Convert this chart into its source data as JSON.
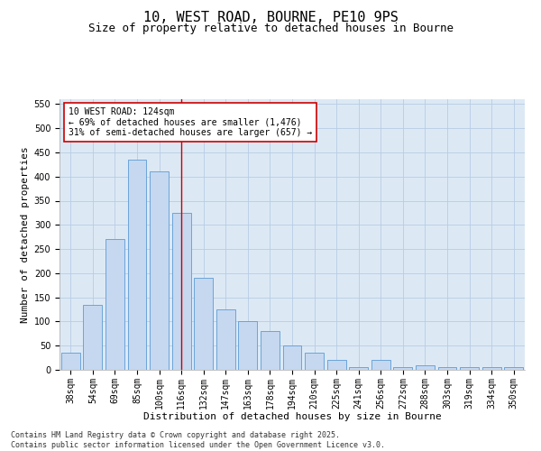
{
  "title1": "10, WEST ROAD, BOURNE, PE10 9PS",
  "title2": "Size of property relative to detached houses in Bourne",
  "xlabel": "Distribution of detached houses by size in Bourne",
  "ylabel": "Number of detached properties",
  "categories": [
    "38sqm",
    "54sqm",
    "69sqm",
    "85sqm",
    "100sqm",
    "116sqm",
    "132sqm",
    "147sqm",
    "163sqm",
    "178sqm",
    "194sqm",
    "210sqm",
    "225sqm",
    "241sqm",
    "256sqm",
    "272sqm",
    "288sqm",
    "303sqm",
    "319sqm",
    "334sqm",
    "350sqm"
  ],
  "values": [
    35,
    135,
    270,
    435,
    410,
    325,
    190,
    125,
    100,
    80,
    50,
    35,
    20,
    5,
    20,
    5,
    10,
    5,
    5,
    5,
    5
  ],
  "bar_color": "#c5d8f0",
  "bar_edge_color": "#5b9bd5",
  "vline_x_index": 5,
  "vline_color": "#cc0000",
  "annotation_text": "10 WEST ROAD: 124sqm\n← 69% of detached houses are smaller (1,476)\n31% of semi-detached houses are larger (657) →",
  "annotation_box_color": "#ffffff",
  "annotation_box_edge": "#cc0000",
  "ylim": [
    0,
    560
  ],
  "yticks": [
    0,
    50,
    100,
    150,
    200,
    250,
    300,
    350,
    400,
    450,
    500,
    550
  ],
  "grid_color": "#b8cce4",
  "background_color": "#dce9f5",
  "footer_text": "Contains HM Land Registry data © Crown copyright and database right 2025.\nContains public sector information licensed under the Open Government Licence v3.0.",
  "title_fontsize": 11,
  "subtitle_fontsize": 9,
  "axis_label_fontsize": 8,
  "tick_fontsize": 7,
  "footer_fontsize": 6,
  "annotation_fontsize": 7
}
